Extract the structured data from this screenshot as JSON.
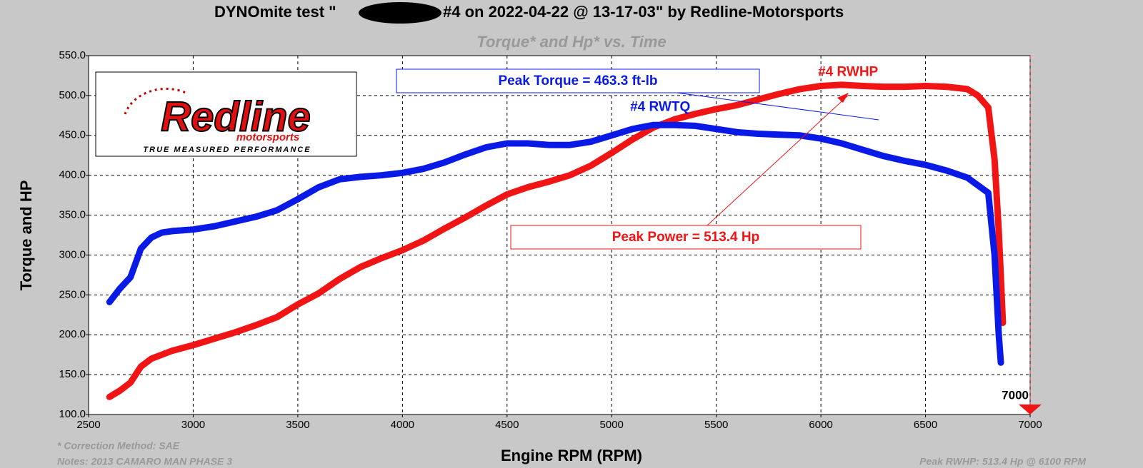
{
  "chart_data": {
    "type": "line",
    "title": [
      "DYNOmite test \"",
      "#4 on 2022-04-22 @ 13-17-03\" by Redline-Motorsports"
    ],
    "subtitle": "Torque* and Hp* vs. Time",
    "x_label": "Engine RPM (RPM)",
    "y_label": "Torque and HP",
    "xlim": [
      2500,
      7000
    ],
    "xticks": [
      2500,
      3000,
      3500,
      4000,
      4500,
      5000,
      5500,
      6000,
      6500,
      7000
    ],
    "ylim": [
      100,
      550
    ],
    "yticks": [
      {
        "value": 100,
        "label": "100.0"
      },
      {
        "value": 150,
        "label": "150.0"
      },
      {
        "value": 200,
        "label": "200.0"
      },
      {
        "value": 250,
        "label": "250.0"
      },
      {
        "value": 300,
        "label": "300.0"
      },
      {
        "value": 350,
        "label": "350.0"
      },
      {
        "value": 400,
        "label": "400.0"
      },
      {
        "value": 450,
        "label": "450.0"
      },
      {
        "value": 500,
        "label": "500.0"
      },
      {
        "value": 550,
        "label": "550.0"
      }
    ],
    "grid": true,
    "rpm_marker": 7000,
    "series": [
      {
        "name": "#4 RWTQ",
        "color": "#0a1ae6",
        "x": [
          2600,
          2650,
          2700,
          2750,
          2800,
          2850,
          2900,
          3000,
          3100,
          3200,
          3300,
          3400,
          3500,
          3600,
          3700,
          3800,
          3900,
          4000,
          4100,
          4200,
          4300,
          4400,
          4500,
          4600,
          4700,
          4800,
          4900,
          5000,
          5100,
          5200,
          5300,
          5400,
          5500,
          5600,
          5700,
          5800,
          5900,
          6000,
          6100,
          6200,
          6300,
          6400,
          6500,
          6600,
          6700,
          6800,
          6830,
          6850,
          6860
        ],
        "values": [
          241,
          258,
          272,
          308,
          322,
          328,
          330,
          332,
          336,
          342,
          348,
          356,
          370,
          385,
          395,
          398,
          400,
          403,
          408,
          416,
          426,
          435,
          440,
          440,
          438,
          438,
          442,
          450,
          458,
          463,
          463,
          462,
          458,
          454,
          452,
          451,
          450,
          446,
          440,
          432,
          424,
          418,
          413,
          406,
          397,
          378,
          300,
          200,
          165
        ]
      },
      {
        "name": "#4 RWHP",
        "color": "#f01414",
        "x": [
          2600,
          2650,
          2700,
          2750,
          2800,
          2900,
          3000,
          3100,
          3200,
          3300,
          3400,
          3500,
          3600,
          3700,
          3800,
          3900,
          4000,
          4100,
          4200,
          4300,
          4400,
          4500,
          4600,
          4700,
          4800,
          4900,
          5000,
          5100,
          5200,
          5300,
          5400,
          5500,
          5600,
          5700,
          5800,
          5900,
          6000,
          6100,
          6200,
          6300,
          6400,
          6500,
          6600,
          6700,
          6750,
          6800,
          6830,
          6850,
          6870
        ],
        "values": [
          122,
          130,
          140,
          160,
          170,
          180,
          187,
          195,
          203,
          212,
          222,
          238,
          252,
          270,
          285,
          296,
          306,
          318,
          333,
          347,
          362,
          376,
          385,
          392,
          400,
          412,
          428,
          445,
          460,
          470,
          477,
          483,
          488,
          495,
          502,
          508,
          512,
          513.4,
          512,
          511,
          511,
          512,
          511,
          508,
          500,
          485,
          420,
          330,
          215
        ]
      }
    ],
    "annotations": {
      "peak_torque": "Peak Torque =  463.3 ft-lb",
      "peak_power": "Peak Power =  513.4 Hp"
    },
    "footer": {
      "correction": "* Correction Method: SAE",
      "notes": "Notes: 2013 CAMARO MAN PHASE 3",
      "peak": "Peak RWHP: 513.4 Hp @ 6100 RPM"
    },
    "logo": {
      "name": "Redline",
      "sub": "motorsports",
      "tagline": "TRUE MEASURED PERFORMANCE"
    }
  }
}
